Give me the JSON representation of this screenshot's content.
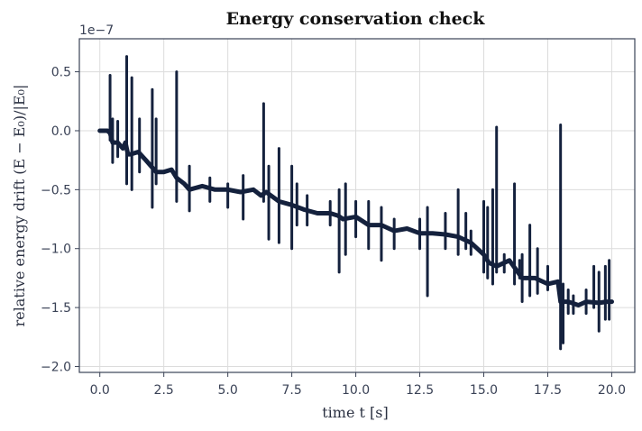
{
  "chart_data": {
    "type": "line",
    "title": "Energy conservation check",
    "xlabel": "time  t  [s]",
    "ylabel": "relative energy drift  (E − E₀)/|E₀|",
    "offset_label": "1e−7",
    "xlim": [
      -0.8,
      20.9
    ],
    "ylim": [
      -2.05,
      0.78
    ],
    "x_ticks": [
      0.0,
      2.5,
      5.0,
      7.5,
      10.0,
      12.5,
      15.0,
      17.5,
      20.0
    ],
    "x_tick_labels": [
      "0.0",
      "2.5",
      "5.0",
      "7.5",
      "10.0",
      "12.5",
      "15.0",
      "17.5",
      "20.0"
    ],
    "y_ticks": [
      0.5,
      0.0,
      -0.5,
      -1.0,
      -1.5,
      -2.0
    ],
    "y_tick_labels": [
      "0.5",
      "0.0",
      "−0.5",
      "−1.0",
      "−1.5",
      "−2.0"
    ],
    "grid": true,
    "line_color": "#14213d",
    "series": [
      {
        "name": "",
        "x": [
          0.0,
          0.3,
          0.4,
          0.5,
          0.7,
          0.9,
          1.0,
          1.1,
          1.2,
          1.5,
          1.8,
          2.0,
          2.2,
          2.5,
          2.8,
          3.0,
          3.3,
          3.5,
          4.0,
          4.5,
          5.0,
          5.5,
          6.0,
          6.3,
          6.5,
          7.0,
          7.5,
          8.0,
          8.5,
          9.0,
          9.3,
          9.5,
          10.0,
          10.5,
          11.0,
          11.5,
          12.0,
          12.5,
          13.0,
          13.5,
          14.0,
          14.5,
          15.0,
          15.2,
          15.5,
          16.0,
          16.5,
          17.0,
          17.5,
          17.9,
          18.0,
          18.3,
          18.7,
          19.0,
          19.5,
          19.8,
          20.0
        ],
        "y": [
          0.0,
          0.0,
          -0.02,
          -0.1,
          -0.1,
          -0.15,
          -0.1,
          -0.2,
          -0.2,
          -0.18,
          -0.25,
          -0.3,
          -0.35,
          -0.35,
          -0.33,
          -0.4,
          -0.45,
          -0.5,
          -0.47,
          -0.5,
          -0.5,
          -0.52,
          -0.5,
          -0.55,
          -0.52,
          -0.6,
          -0.63,
          -0.67,
          -0.7,
          -0.7,
          -0.72,
          -0.75,
          -0.73,
          -0.8,
          -0.8,
          -0.85,
          -0.83,
          -0.87,
          -0.87,
          -0.88,
          -0.9,
          -0.95,
          -1.05,
          -1.12,
          -1.15,
          -1.1,
          -1.25,
          -1.25,
          -1.3,
          -1.28,
          -1.45,
          -1.45,
          -1.48,
          -1.45,
          -1.46,
          -1.45,
          -1.45
        ]
      }
    ],
    "spikes": [
      {
        "x": 0.4,
        "hi": 0.47,
        "lo": -0.08
      },
      {
        "x": 0.5,
        "hi": 0.1,
        "lo": -0.27
      },
      {
        "x": 0.7,
        "hi": 0.08,
        "lo": -0.22
      },
      {
        "x": 1.05,
        "hi": 0.63,
        "lo": -0.45
      },
      {
        "x": 1.25,
        "hi": 0.45,
        "lo": -0.5
      },
      {
        "x": 1.55,
        "hi": 0.1,
        "lo": -0.35
      },
      {
        "x": 2.05,
        "hi": 0.35,
        "lo": -0.65
      },
      {
        "x": 2.2,
        "hi": 0.1,
        "lo": -0.45
      },
      {
        "x": 3.0,
        "hi": 0.5,
        "lo": -0.6
      },
      {
        "x": 3.5,
        "hi": -0.3,
        "lo": -0.68
      },
      {
        "x": 4.3,
        "hi": -0.4,
        "lo": -0.6
      },
      {
        "x": 5.0,
        "hi": -0.45,
        "lo": -0.65
      },
      {
        "x": 5.6,
        "hi": -0.38,
        "lo": -0.75
      },
      {
        "x": 6.4,
        "hi": 0.23,
        "lo": -0.6
      },
      {
        "x": 6.6,
        "hi": -0.3,
        "lo": -0.92
      },
      {
        "x": 7.0,
        "hi": -0.15,
        "lo": -0.95
      },
      {
        "x": 7.5,
        "hi": -0.3,
        "lo": -1.0
      },
      {
        "x": 7.7,
        "hi": -0.45,
        "lo": -0.8
      },
      {
        "x": 8.1,
        "hi": -0.55,
        "lo": -0.8
      },
      {
        "x": 9.0,
        "hi": -0.6,
        "lo": -0.8
      },
      {
        "x": 9.35,
        "hi": -0.5,
        "lo": -1.2
      },
      {
        "x": 9.6,
        "hi": -0.45,
        "lo": -1.05
      },
      {
        "x": 10.0,
        "hi": -0.6,
        "lo": -0.9
      },
      {
        "x": 10.5,
        "hi": -0.6,
        "lo": -1.0
      },
      {
        "x": 11.0,
        "hi": -0.65,
        "lo": -1.1
      },
      {
        "x": 11.5,
        "hi": -0.75,
        "lo": -1.0
      },
      {
        "x": 12.5,
        "hi": -0.75,
        "lo": -1.0
      },
      {
        "x": 12.8,
        "hi": -0.65,
        "lo": -1.4
      },
      {
        "x": 13.5,
        "hi": -0.7,
        "lo": -1.0
      },
      {
        "x": 14.0,
        "hi": -0.5,
        "lo": -1.05
      },
      {
        "x": 14.3,
        "hi": -0.7,
        "lo": -1.0
      },
      {
        "x": 14.5,
        "hi": -0.85,
        "lo": -1.05
      },
      {
        "x": 15.0,
        "hi": -0.6,
        "lo": -1.2
      },
      {
        "x": 15.15,
        "hi": -0.65,
        "lo": -1.25
      },
      {
        "x": 15.35,
        "hi": -0.5,
        "lo": -1.3
      },
      {
        "x": 15.5,
        "hi": 0.03,
        "lo": -1.2
      },
      {
        "x": 15.8,
        "hi": -1.05,
        "lo": -1.2
      },
      {
        "x": 16.2,
        "hi": -0.45,
        "lo": -1.3
      },
      {
        "x": 16.4,
        "hi": -1.1,
        "lo": -1.25
      },
      {
        "x": 16.5,
        "hi": -1.05,
        "lo": -1.45
      },
      {
        "x": 16.8,
        "hi": -0.8,
        "lo": -1.4
      },
      {
        "x": 17.1,
        "hi": -1.0,
        "lo": -1.38
      },
      {
        "x": 17.5,
        "hi": -1.15,
        "lo": -1.35
      },
      {
        "x": 18.0,
        "hi": 0.05,
        "lo": -1.85
      },
      {
        "x": 18.1,
        "hi": -1.3,
        "lo": -1.8
      },
      {
        "x": 18.3,
        "hi": -1.35,
        "lo": -1.55
      },
      {
        "x": 18.5,
        "hi": -1.4,
        "lo": -1.55
      },
      {
        "x": 19.0,
        "hi": -1.35,
        "lo": -1.55
      },
      {
        "x": 19.3,
        "hi": -1.15,
        "lo": -1.5
      },
      {
        "x": 19.5,
        "hi": -1.2,
        "lo": -1.7
      },
      {
        "x": 19.75,
        "hi": -1.15,
        "lo": -1.6
      },
      {
        "x": 19.9,
        "hi": -1.1,
        "lo": -1.6
      }
    ]
  }
}
